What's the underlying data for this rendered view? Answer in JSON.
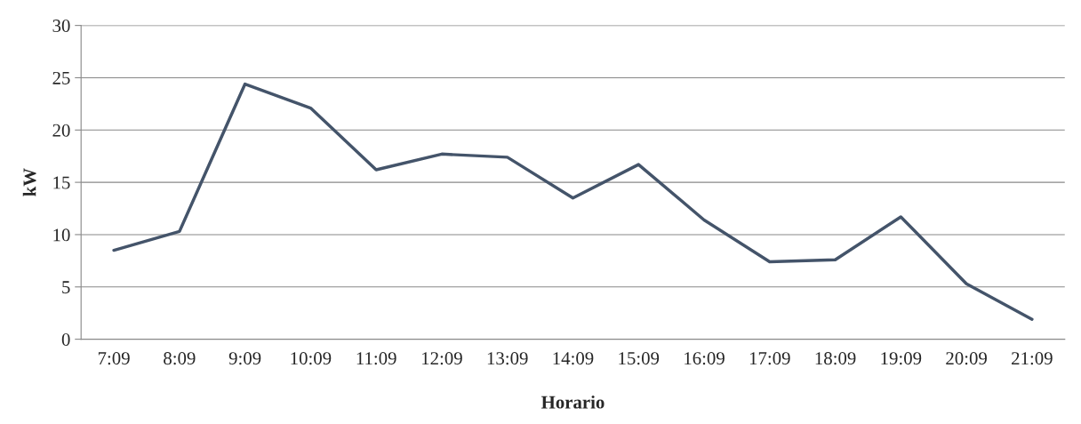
{
  "chart_data": {
    "type": "line",
    "xlabel": "Horario",
    "ylabel": "kW",
    "categories": [
      "7:09",
      "8:09",
      "9:09",
      "10:09",
      "11:09",
      "12:09",
      "13:09",
      "14:09",
      "15:09",
      "16:09",
      "17:09",
      "18:09",
      "19:09",
      "20:09",
      "21:09"
    ],
    "series": [
      {
        "color": "#44546a",
        "values": [
          8.5,
          10.3,
          24.4,
          22.1,
          16.2,
          17.7,
          17.4,
          13.5,
          16.7,
          11.4,
          7.4,
          7.6,
          11.7,
          5.3,
          1.9
        ]
      }
    ],
    "ylim": [
      0,
      30
    ],
    "yticks": [
      0,
      5,
      10,
      15,
      20,
      25,
      30
    ],
    "grid": "y",
    "marker": "none",
    "line_style": "solid"
  }
}
